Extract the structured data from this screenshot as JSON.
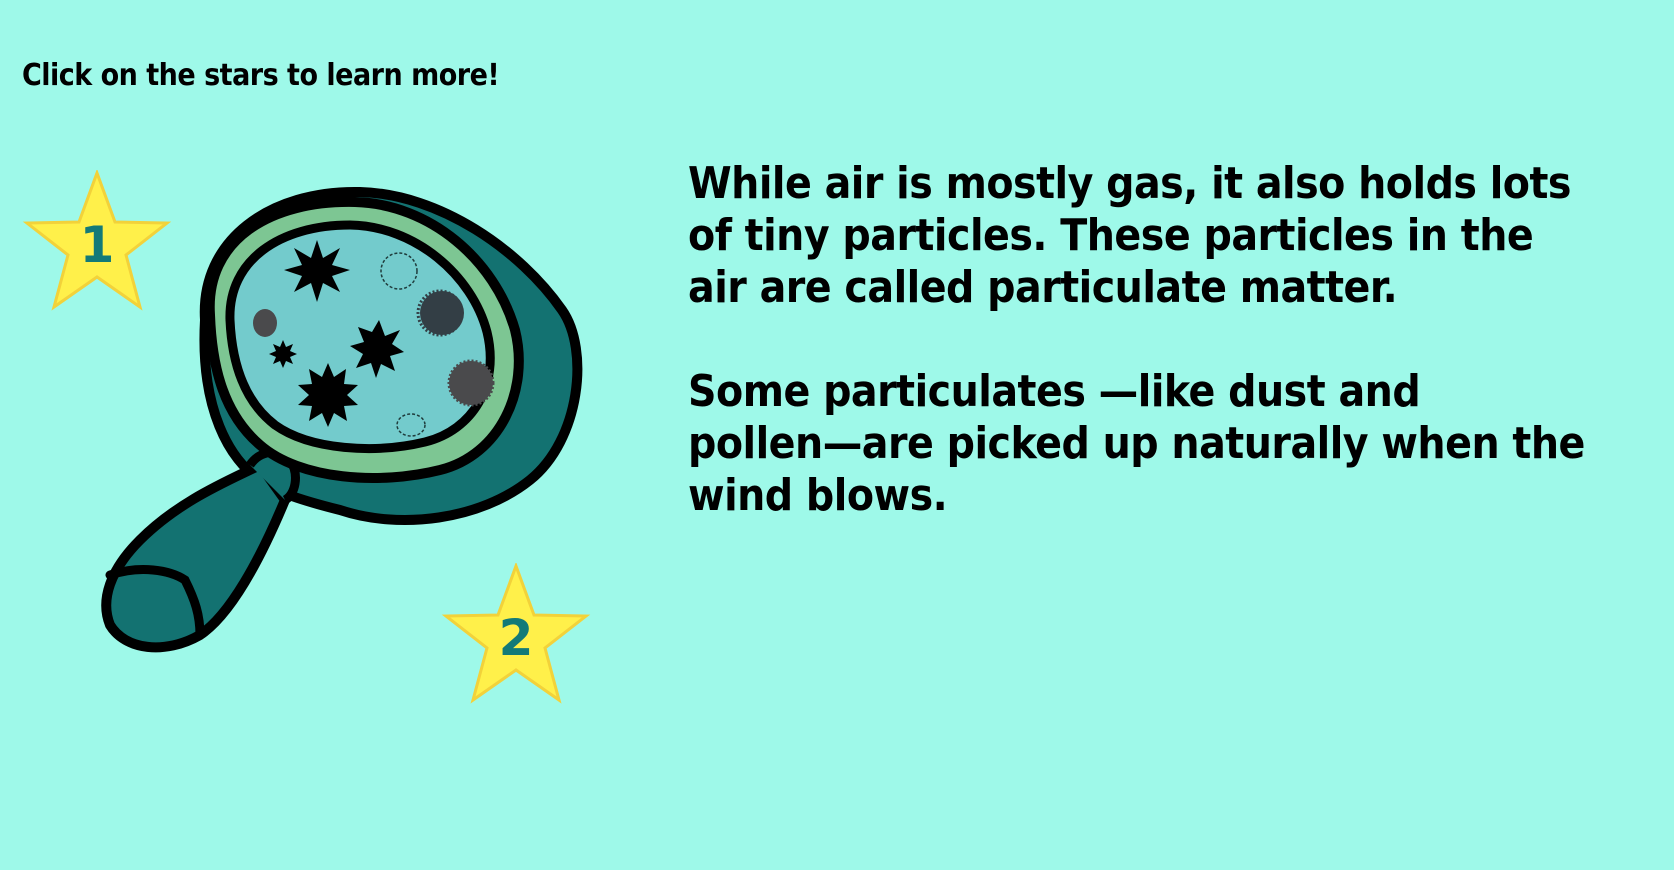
{
  "instruction": "Click on the stars to learn more!",
  "content": {
    "paragraph1": {
      "line1": "While air is mostly gas, it also holds lots",
      "line2": "of tiny particles.  These particles in the",
      "line3": "air are called particulate matter."
    },
    "paragraph2": {
      "line1": "Some particulates —like dust and",
      "line2": "pollen—are picked up naturally when the",
      "line3": "wind blows."
    }
  },
  "stars": [
    {
      "label": "1",
      "icon": "star-icon",
      "color": "#fff04a"
    },
    {
      "label": "2",
      "icon": "star-icon",
      "color": "#fff04a"
    }
  ],
  "illustration": {
    "icon": "magnifying-glass-icon",
    "colors": {
      "background": "#9ef9e9",
      "handle": "#137271",
      "rim": "#7dc693",
      "lens": "#73cbcc",
      "star_number": "#137a78"
    }
  }
}
